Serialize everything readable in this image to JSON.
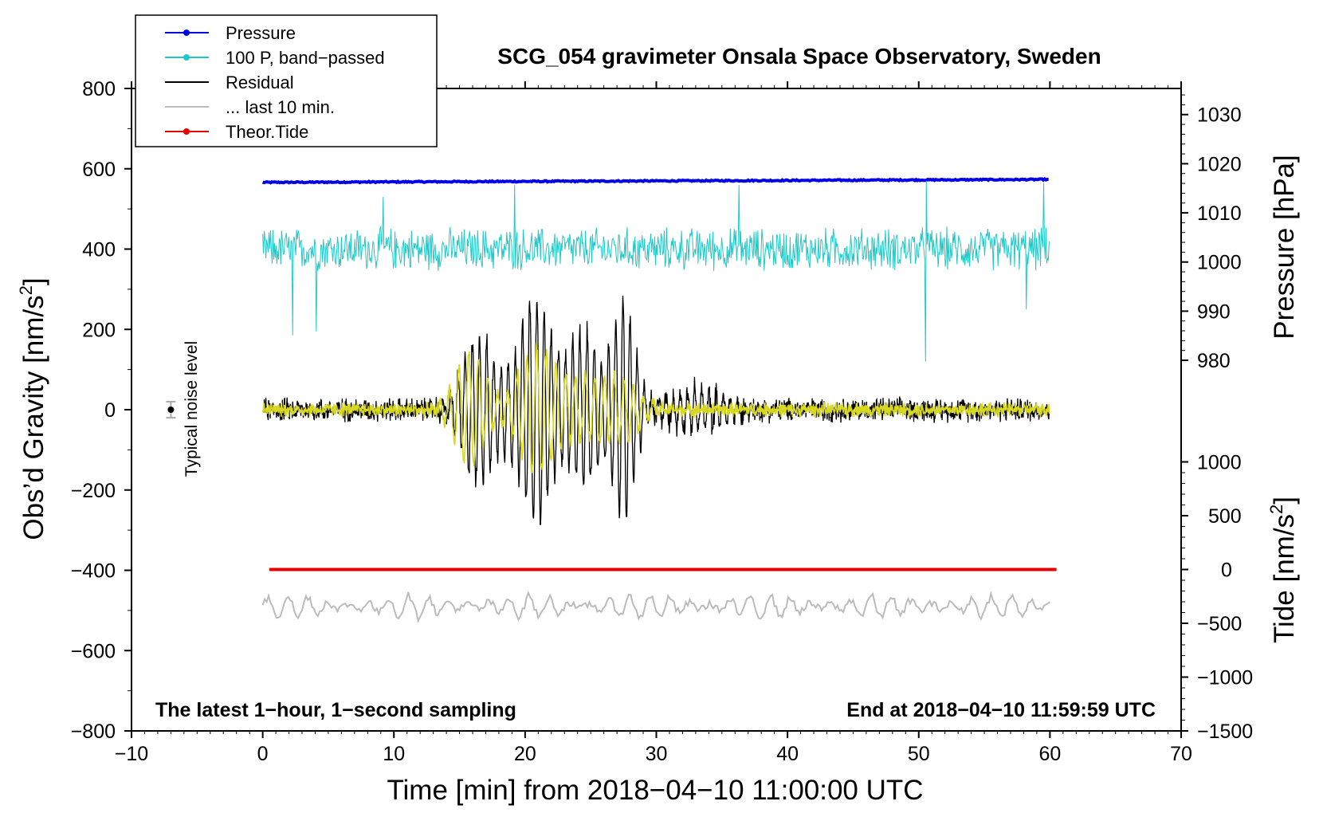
{
  "chart_data": {
    "type": "line",
    "title": "SCG_054 gravimeter Onsala Space Observatory, Sweden",
    "xlabel": "Time [min] from 2018−04−10 11:00:00 UTC",
    "ylabel_left": {
      "text": "Obs’d Gravity [nm/s",
      "sup": "2",
      "close": "]"
    },
    "ylabel_right_top": "Pressure [hPa]",
    "ylabel_right_bottom": {
      "text": "Tide [nm/s",
      "sup": "2",
      "close": "]"
    },
    "xlim": [
      -10,
      70
    ],
    "ylim_left": [
      -800,
      800
    ],
    "x_ticks": [
      {
        "value": -10,
        "label": "−10"
      },
      {
        "value": 0,
        "label": "0"
      },
      {
        "value": 10,
        "label": "10"
      },
      {
        "value": 20,
        "label": "20"
      },
      {
        "value": 30,
        "label": "30"
      },
      {
        "value": 40,
        "label": "40"
      },
      {
        "value": 50,
        "label": "50"
      },
      {
        "value": 60,
        "label": "60"
      },
      {
        "value": 70,
        "label": "70"
      }
    ],
    "y_ticks_left": [
      {
        "value": 800,
        "label": "800"
      },
      {
        "value": 600,
        "label": "600"
      },
      {
        "value": 400,
        "label": "400"
      },
      {
        "value": 200,
        "label": "200"
      },
      {
        "value": 0,
        "label": "0"
      },
      {
        "value": -200,
        "label": "−200"
      },
      {
        "value": -400,
        "label": "−400"
      },
      {
        "value": -600,
        "label": "−600"
      },
      {
        "value": -800,
        "label": "−800"
      }
    ],
    "pressure_axis": {
      "ticks": [
        {
          "value": 1030,
          "label": "1030"
        },
        {
          "value": 1020,
          "label": "1020"
        },
        {
          "value": 1010,
          "label": "1010"
        },
        {
          "value": 1000,
          "label": "1000"
        },
        {
          "value": 990,
          "label": "990"
        },
        {
          "value": 980,
          "label": "980"
        }
      ],
      "map": {
        "value_a": 1030,
        "grav_a": 735,
        "value_b": 980,
        "grav_b": 123
      }
    },
    "tide_axis": {
      "ticks": [
        {
          "value": 1000,
          "label": "1000"
        },
        {
          "value": 500,
          "label": "500"
        },
        {
          "value": 0,
          "label": "0"
        },
        {
          "value": -500,
          "label": "−500"
        },
        {
          "value": -1000,
          "label": "−1000"
        },
        {
          "value": -1500,
          "label": "−1500"
        }
      ],
      "map": {
        "value_a": 1000,
        "grav_a": -130,
        "value_b": -1500,
        "grav_b": -800
      }
    },
    "legend": {
      "position": "top-left",
      "entries": [
        {
          "label": "Pressure",
          "color": "#0000e6",
          "marker": true
        },
        {
          "label": "100 P, band−passed",
          "color": "#20c8c8",
          "marker": true
        },
        {
          "label": "Residual",
          "color": "#000000",
          "marker": false
        },
        {
          "label": "... last 10 min.",
          "color": "#bbbbbb",
          "marker": false
        },
        {
          "label": "Theor.Tide",
          "color": "#e60000",
          "marker": true
        }
      ]
    },
    "series": [
      {
        "name": "Pressure",
        "color": "#0000e6",
        "axis": "pressure",
        "x_range": [
          0,
          60
        ],
        "start": 1016.2,
        "end": 1016.8
      },
      {
        "name": "100 P, band−passed",
        "color": "#20c8c8",
        "axis": "gravity",
        "x_range": [
          0,
          60
        ],
        "offset": 400,
        "amplitude": 55,
        "spikes": [
          {
            "x": 2.3,
            "y": 185
          },
          {
            "x": 4.1,
            "y": 195
          },
          {
            "x": 9.2,
            "y": 530
          },
          {
            "x": 19.2,
            "y": 560
          },
          {
            "x": 36.3,
            "y": 560
          },
          {
            "x": 50.5,
            "y": 120
          },
          {
            "x": 50.6,
            "y": 570
          },
          {
            "x": 58.2,
            "y": 250
          },
          {
            "x": 59.5,
            "y": 565
          }
        ]
      },
      {
        "name": "Residual",
        "color": "#000000",
        "axis": "gravity",
        "x_range": [
          0,
          60
        ],
        "offset": 0,
        "noise": 25,
        "wave_packets": [
          {
            "center": 16.5,
            "width": 1.8,
            "amp": 180
          },
          {
            "center": 20.8,
            "width": 1.8,
            "amp": 280
          },
          {
            "center": 24.5,
            "width": 1.5,
            "amp": 190
          },
          {
            "center": 27.5,
            "width": 1.2,
            "amp": 270
          },
          {
            "center": 33.0,
            "width": 3.0,
            "amp": 50
          }
        ]
      },
      {
        "name": "Residual (band-passed)",
        "color": "#d8d820",
        "axis": "gravity",
        "x_range": [
          0,
          60
        ],
        "offset": 0,
        "noise": 15,
        "wave_packets": [
          {
            "center": 15.8,
            "width": 1.6,
            "amp": 140
          },
          {
            "center": 20.8,
            "width": 1.9,
            "amp": 150
          },
          {
            "center": 24.5,
            "width": 2.5,
            "amp": 70
          },
          {
            "center": 27.5,
            "width": 2.0,
            "amp": 60
          }
        ]
      },
      {
        "name": "Theor.Tide",
        "color": "#e60000",
        "axis": "tide",
        "x_range": [
          0.5,
          60.5
        ],
        "start": 0,
        "end": 0
      },
      {
        "name": "... last 10 min.",
        "color": "#bbbbbb",
        "axis": "gravity",
        "x_range": [
          0,
          60
        ],
        "offset": -490,
        "amplitude": 28
      }
    ],
    "noise_bar": {
      "x": -7,
      "y": 0,
      "half": 20,
      "label": "Typical noise level"
    },
    "annotations": {
      "left": "The latest 1−hour, 1−second sampling",
      "right": "End at 2018−04−10 11:59:59 UTC"
    }
  }
}
